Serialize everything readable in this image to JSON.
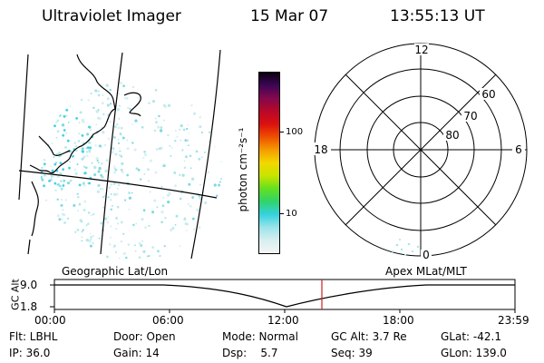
{
  "header": {
    "title": "Ultraviolet Imager",
    "date": "15 Mar 07",
    "time": "13:55:13 UT"
  },
  "colorbar": {
    "unit_label": "photon cm⁻²s⁻¹",
    "ticks": [
      "100",
      "10"
    ],
    "colors": [
      "#f4f4f4",
      "#d8eef0",
      "#9be4e8",
      "#35d2e0",
      "#2fd46a",
      "#64e020",
      "#c8e400",
      "#f2d800",
      "#f49c00",
      "#ee5000",
      "#dc1010",
      "#b80828",
      "#84084c",
      "#3e0656",
      "#0c0010"
    ]
  },
  "polar": {
    "mlt_labels": [
      "12",
      "18",
      "6",
      "0"
    ],
    "lat_labels": [
      "60",
      "70",
      "80"
    ]
  },
  "timeline": {
    "left_label": "Geographic Lat/Lon",
    "right_label": "Apex MLat/MLT",
    "y_axis_label": "GC Alt",
    "y_ticks": [
      "9.0",
      "1.8"
    ],
    "x_ticks": [
      "00:00",
      "06:00",
      "12:00",
      "18:00",
      "23:59"
    ],
    "marker_color": "#cc2020"
  },
  "info": {
    "flt": "Flt: LBHL",
    "ip": "IP: 36.0",
    "door": "Door: Open",
    "gain": "Gain: 14",
    "mode": "Mode: Normal",
    "dsp": "Dsp:    5.7",
    "gcalt": "GC Alt: 3.7 Re",
    "seq": "Seq: 39",
    "glat": "GLat: -42.1",
    "glon": "GLon: 139.0"
  }
}
